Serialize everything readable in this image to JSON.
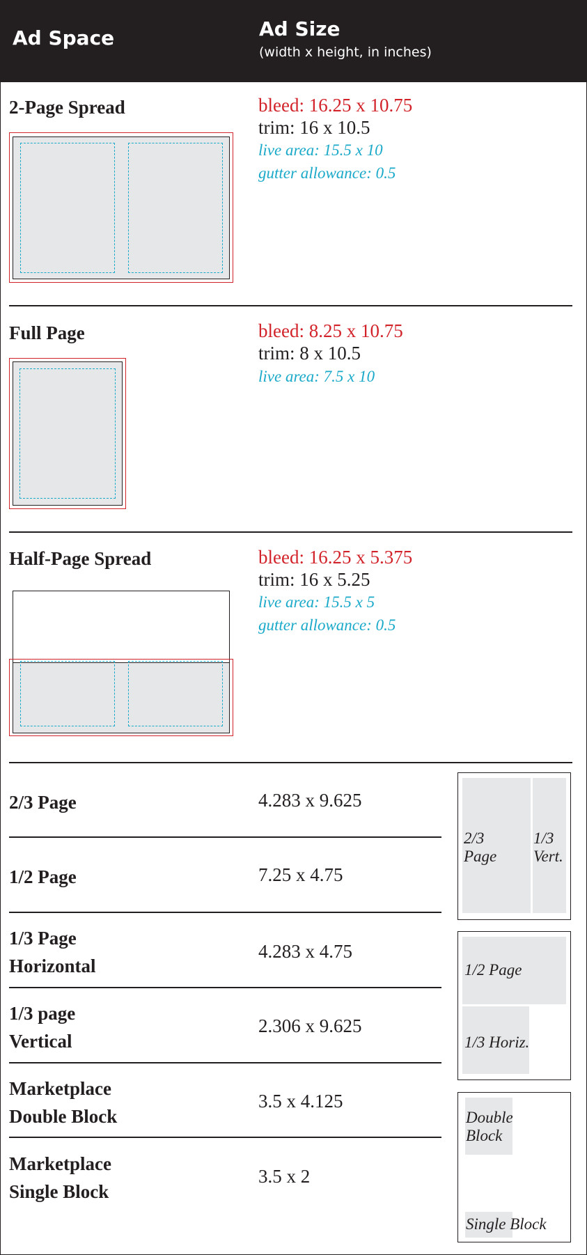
{
  "header": {
    "ad_space": "Ad Space",
    "ad_size": "Ad Size",
    "ad_size_sub": "(width x height, in inches)",
    "background": "#231f20"
  },
  "colors": {
    "bleed": "#d2232a",
    "live": "#1aa9c9",
    "trim": "#231f20",
    "fill": "#e6e7e8"
  },
  "sections": {
    "spread": {
      "title": "2-Page Spread",
      "bleed": "bleed: 16.25 x 10.75",
      "trim": "trim: 16 x 10.5",
      "live": "live area: 15.5 x 10",
      "gutter": "gutter allowance: 0.5"
    },
    "full": {
      "title": "Full Page",
      "bleed": "bleed: 8.25 x 10.75",
      "trim": "trim: 8 x 10.5",
      "live": "live area: 7.5 x 10"
    },
    "half_spread": {
      "title": "Half-Page Spread",
      "bleed": "bleed: 16.25 x 5.375",
      "trim": "trim: 16 x 5.25",
      "live": "live area: 15.5 x 5",
      "gutter": "gutter allowance: 0.5"
    }
  },
  "sizes": [
    {
      "line1": "2/3 Page",
      "line2": "",
      "size": "4.283 x 9.625"
    },
    {
      "line1": "1/2 Page",
      "line2": "",
      "size": "7.25 x 4.75"
    },
    {
      "line1": "1/3 Page",
      "line2": "Horizontal",
      "size": "4.283 x 4.75"
    },
    {
      "line1": "1/3 page",
      "line2": "Vertical",
      "size": "2.306 x 9.625"
    },
    {
      "line1": "Marketplace",
      "line2": "Double Block",
      "size": "3.5 x 4.125"
    },
    {
      "line1": "Marketplace",
      "line2": "Single Block",
      "size": "3.5 x 2"
    }
  ],
  "diagrams": {
    "two_thirds": {
      "line1": "2/3",
      "line2": "Page"
    },
    "one_third_vert": {
      "line1": "1/3",
      "line2": "Vert."
    },
    "half_page": "1/2 Page",
    "one_third_horiz": "1/3 Horiz.",
    "double_block": {
      "line1": "Double",
      "line2": "Block"
    },
    "single_block": "Single Block"
  }
}
